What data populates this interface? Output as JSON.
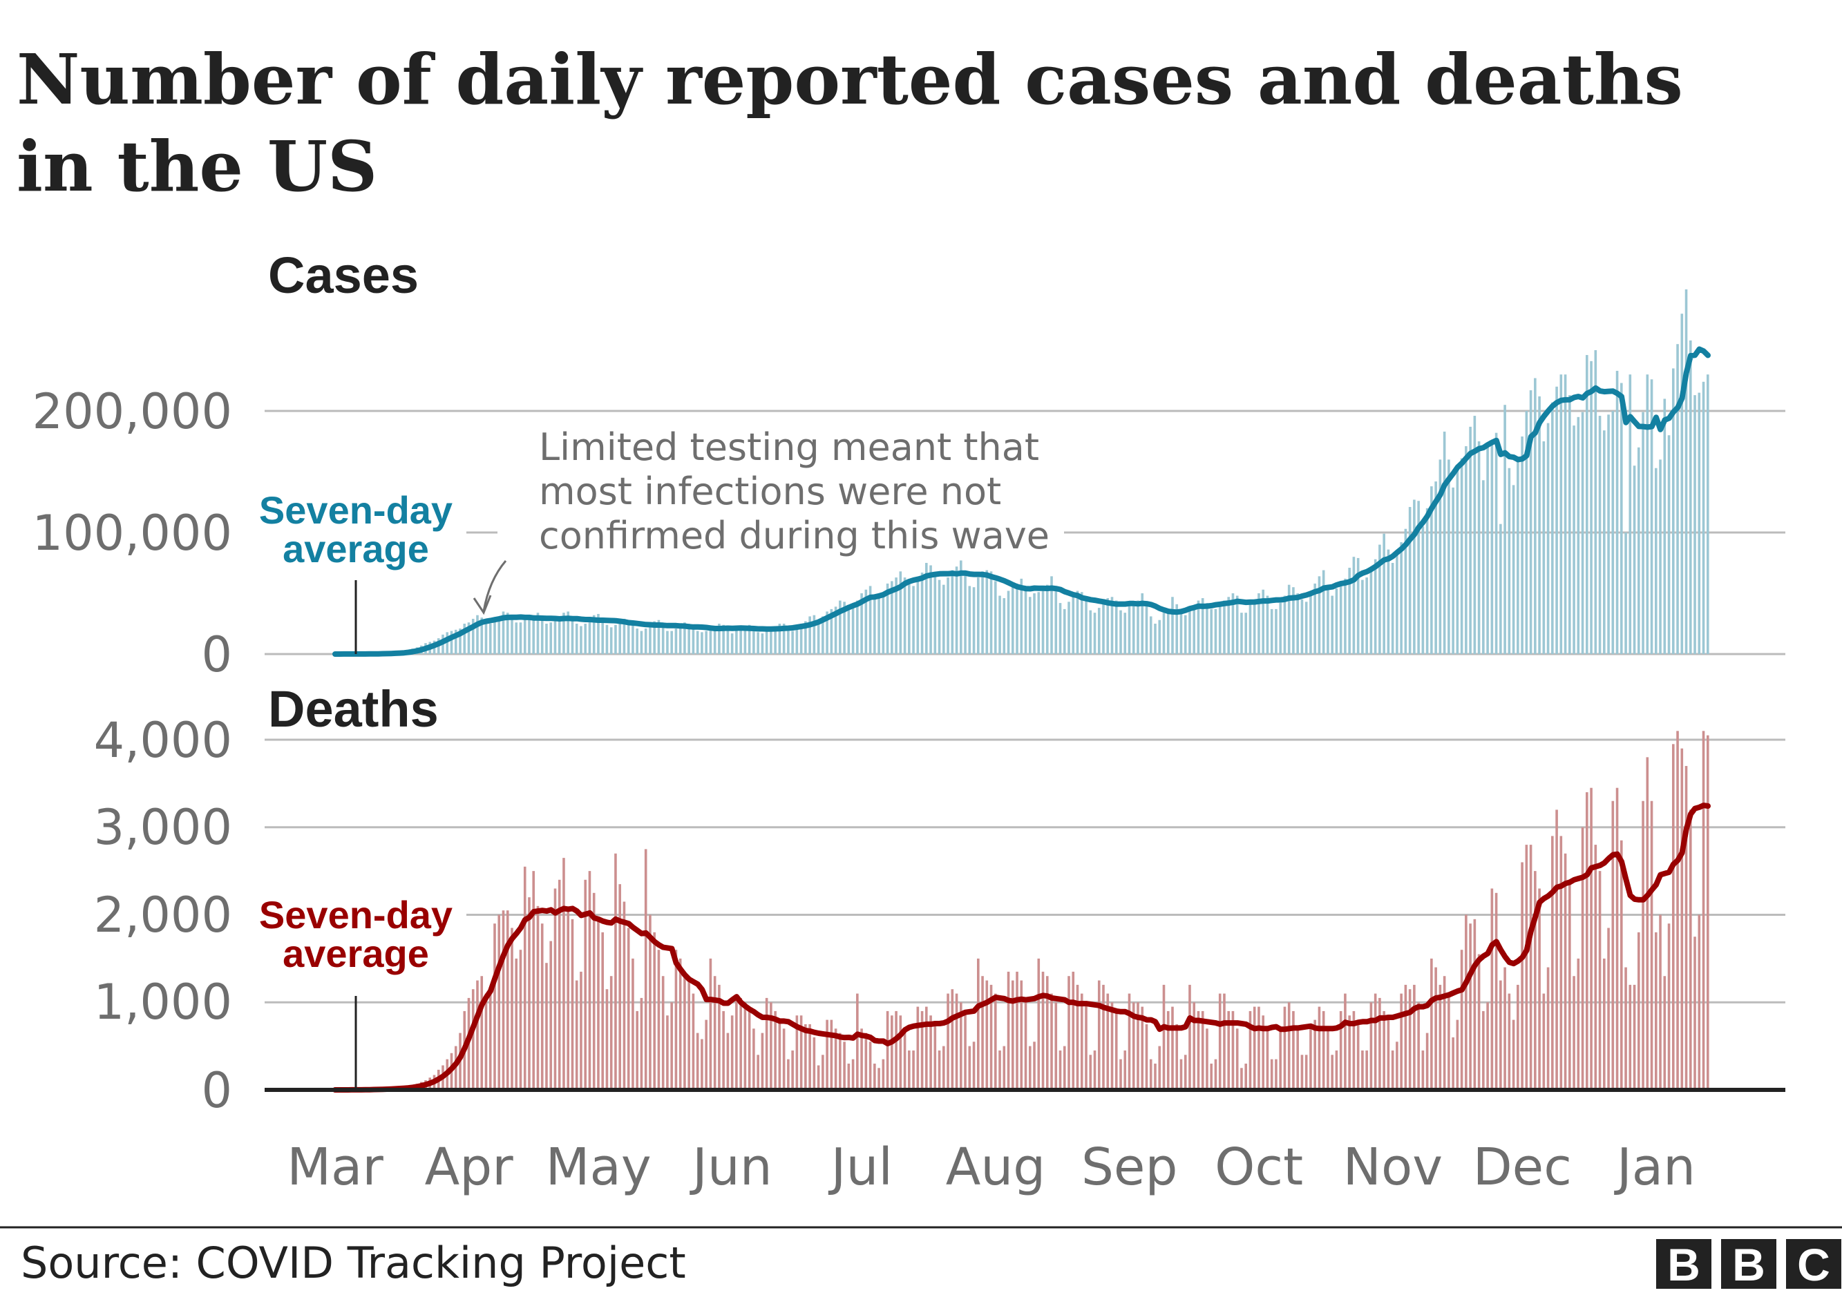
{
  "title_line1": "Number of daily reported cases and deaths",
  "title_line2": "in the US",
  "source": "Source: COVID Tracking Project",
  "logo": "BBC",
  "annotation": {
    "line1": "Limited testing meant that",
    "line2": "most infections were not",
    "line3": "confirmed during this wave"
  },
  "colors": {
    "cases_bar": "#9cc7d4",
    "cases_line": "#1380a1",
    "deaths_bar": "#cc8f8f",
    "deaths_line": "#990000",
    "grid": "#bbbbbb",
    "axis_text": "#6e6e6e"
  },
  "chart_data": [
    {
      "type": "bar",
      "title": "Cases",
      "average_label_line1": "Seven-day",
      "average_label_line2": "average",
      "x_start": "2020-03-01",
      "x_end": "2021-01-13",
      "x_tick_labels": [
        "Mar",
        "Apr",
        "May",
        "Jun",
        "Jul",
        "Aug",
        "Sep",
        "Oct",
        "Nov",
        "Dec",
        "Jan"
      ],
      "y_ticks": [
        0,
        100000,
        200000
      ],
      "y_tick_labels": [
        "0",
        "100,000",
        "200,000"
      ],
      "ylim": [
        0,
        300000
      ],
      "grid": true,
      "series": [
        {
          "name": "Seven-day average",
          "kind": "line",
          "derived_from": "daily"
        },
        {
          "kind": "bar",
          "daily": [
            20,
            30,
            50,
            60,
            80,
            100,
            120,
            150,
            200,
            300,
            400,
            550,
            700,
            900,
            1200,
            1600,
            2000,
            3000,
            4500,
            5500,
            7000,
            9000,
            10000,
            11000,
            13000,
            16000,
            18000,
            19000,
            20000,
            21000,
            25000,
            26000,
            29000,
            32000,
            30000,
            26000,
            25000,
            30000,
            31000,
            35000,
            34000,
            31000,
            26000,
            26000,
            28000,
            31000,
            32000,
            34000,
            30000,
            25000,
            26000,
            27000,
            29000,
            34000,
            35000,
            28000,
            25000,
            23000,
            25000,
            29000,
            32000,
            33000,
            28000,
            24000,
            22000,
            24000,
            26000,
            29000,
            28000,
            26000,
            21000,
            19000,
            21000,
            25000,
            27000,
            28000,
            25000,
            19000,
            19000,
            21000,
            23000,
            26000,
            25000,
            23000,
            19000,
            18000,
            19000,
            20000,
            23000,
            25000,
            24000,
            20000,
            17000,
            20000,
            21000,
            22000,
            24000,
            23000,
            18000,
            17000,
            19000,
            21000,
            23000,
            25000,
            25000,
            19000,
            19000,
            23000,
            25000,
            27000,
            31000,
            32000,
            28000,
            31000,
            35000,
            37000,
            39000,
            44000,
            43000,
            40000,
            41000,
            44000,
            50000,
            53000,
            56000,
            45000,
            46000,
            48000,
            58000,
            60000,
            63000,
            68000,
            63000,
            58000,
            56000,
            63000,
            67000,
            75000,
            73000,
            67000,
            61000,
            57000,
            63000,
            69000,
            72000,
            77000,
            67000,
            56000,
            55000,
            63000,
            68000,
            69000,
            68000,
            60000,
            48000,
            46000,
            52000,
            56000,
            58000,
            62000,
            55000,
            47000,
            50000,
            51000,
            56000,
            57000,
            64000,
            52000,
            42000,
            37000,
            43000,
            47000,
            52000,
            51000,
            47000,
            36000,
            34000,
            38000,
            43000,
            46000,
            47000,
            44000,
            36000,
            34000,
            41000,
            43000,
            44000,
            50000,
            42000,
            31000,
            25000,
            28000,
            34000,
            36000,
            47000,
            41000,
            34000,
            32000,
            38000,
            40000,
            44000,
            46000,
            42000,
            37000,
            37000,
            41000,
            44000,
            47000,
            50000,
            48000,
            34000,
            34000,
            42000,
            45000,
            50000,
            53000,
            48000,
            37000,
            37000,
            42000,
            48000,
            57000,
            55000,
            50000,
            45000,
            43000,
            51000,
            58000,
            64000,
            69000,
            54000,
            48000,
            54000,
            59000,
            62000,
            71000,
            80000,
            79000,
            61000,
            63000,
            72000,
            78000,
            90000,
            99000,
            86000,
            75000,
            85000,
            92000,
            103000,
            121000,
            127000,
            126000,
            105000,
            120000,
            138000,
            142000,
            160000,
            183000,
            160000,
            137000,
            156000,
            161000,
            171000,
            187000,
            196000,
            175000,
            143000,
            172000,
            175000,
            182000,
            107000,
            205000,
            153000,
            139000,
            159000,
            179000,
            200000,
            217000,
            227000,
            212000,
            175000,
            190000,
            207000,
            220000,
            230000,
            230000,
            213000,
            188000,
            195000,
            199000,
            246000,
            241000,
            250000,
            196000,
            184000,
            197000,
            200000,
            233000,
            223000,
            100000,
            230000,
            155000,
            170000,
            199000,
            230000,
            226000,
            153000,
            160000,
            210000,
            180000,
            235000,
            255000,
            280000,
            300000,
            258000,
            213000,
            215000,
            224000,
            230000
          ]
        }
      ]
    },
    {
      "type": "bar",
      "title": "Deaths",
      "average_label_line1": "Seven-day",
      "average_label_line2": "average",
      "x_start": "2020-03-01",
      "x_end": "2021-01-13",
      "x_tick_labels": [
        "Mar",
        "Apr",
        "May",
        "Jun",
        "Jul",
        "Aug",
        "Sep",
        "Oct",
        "Nov",
        "Dec",
        "Jan"
      ],
      "y_ticks": [
        0,
        1000,
        2000,
        3000,
        4000
      ],
      "y_tick_labels": [
        "0",
        "1,000",
        "2,000",
        "3,000",
        "4,000"
      ],
      "ylim": [
        0,
        4000
      ],
      "grid": true,
      "series": [
        {
          "name": "Seven-day average",
          "kind": "line",
          "derived_from": "daily"
        },
        {
          "kind": "bar",
          "daily": [
            0,
            0,
            0,
            1,
            2,
            2,
            3,
            4,
            5,
            8,
            10,
            12,
            15,
            18,
            20,
            25,
            30,
            40,
            55,
            70,
            90,
            110,
            140,
            170,
            230,
            280,
            350,
            420,
            500,
            650,
            900,
            1050,
            1150,
            1250,
            1300,
            1100,
            1150,
            1900,
            2000,
            2050,
            2050,
            1850,
            1500,
            1600,
            2550,
            2200,
            2500,
            2100,
            1900,
            1450,
            1700,
            2300,
            2400,
            2650,
            2050,
            1950,
            1250,
            1350,
            2400,
            2500,
            2250,
            1950,
            1800,
            1150,
            1300,
            2700,
            2350,
            2150,
            1850,
            1500,
            900,
            1050,
            2750,
            2000,
            1800,
            1600,
            1300,
            850,
            1000,
            1600,
            1500,
            1350,
            1250,
            1100,
            650,
            580,
            800,
            1500,
            1300,
            1200,
            900,
            650,
            850,
            1050,
            1050,
            1000,
            950,
            700,
            400,
            650,
            1050,
            1000,
            900,
            800,
            700,
            350,
            450,
            850,
            850,
            750,
            750,
            600,
            280,
            400,
            800,
            800,
            700,
            650,
            550,
            300,
            350,
            1100,
            700,
            650,
            550,
            300,
            250,
            350,
            900,
            850,
            900,
            850,
            700,
            450,
            450,
            950,
            900,
            950,
            850,
            750,
            450,
            500,
            1100,
            1150,
            1100,
            1000,
            900,
            500,
            550,
            1500,
            1300,
            1250,
            1200,
            1100,
            450,
            500,
            1350,
            1250,
            1350,
            1250,
            1050,
            500,
            550,
            1500,
            1350,
            1300,
            1100,
            1000,
            450,
            500,
            1300,
            1350,
            1200,
            1100,
            1000,
            400,
            450,
            1250,
            1200,
            1100,
            1000,
            900,
            350,
            450,
            1100,
            1000,
            1000,
            950,
            750,
            350,
            300,
            500,
            1200,
            900,
            950,
            750,
            350,
            400,
            1200,
            1000,
            900,
            900,
            700,
            300,
            350,
            1100,
            1100,
            900,
            900,
            700,
            250,
            300,
            900,
            950,
            950,
            850,
            700,
            350,
            350,
            700,
            950,
            1000,
            900,
            700,
            400,
            400,
            750,
            800,
            950,
            900,
            700,
            400,
            450,
            900,
            1100,
            850,
            900,
            800,
            450,
            450,
            1000,
            1100,
            1050,
            900,
            850,
            450,
            550,
            1100,
            1200,
            1150,
            1200,
            1000,
            450,
            650,
            1500,
            1400,
            1200,
            1300,
            1100,
            600,
            800,
            1600,
            2000,
            1900,
            1950,
            1550,
            900,
            1000,
            2300,
            2250,
            1250,
            1400,
            1100,
            800,
            1200,
            2600,
            2800,
            2800,
            2500,
            2300,
            1100,
            1400,
            2900,
            3200,
            2900,
            2700,
            2400,
            1300,
            1500,
            3000,
            3400,
            3450,
            2800,
            2500,
            1500,
            1850,
            3300,
            3450,
            2850,
            1400,
            1200,
            1200,
            1800,
            3300,
            3800,
            3300,
            1800,
            2000,
            1300,
            1900,
            3950,
            4100,
            3900,
            3700,
            3200,
            1750,
            2000,
            4100,
            4050
          ]
        }
      ]
    }
  ]
}
